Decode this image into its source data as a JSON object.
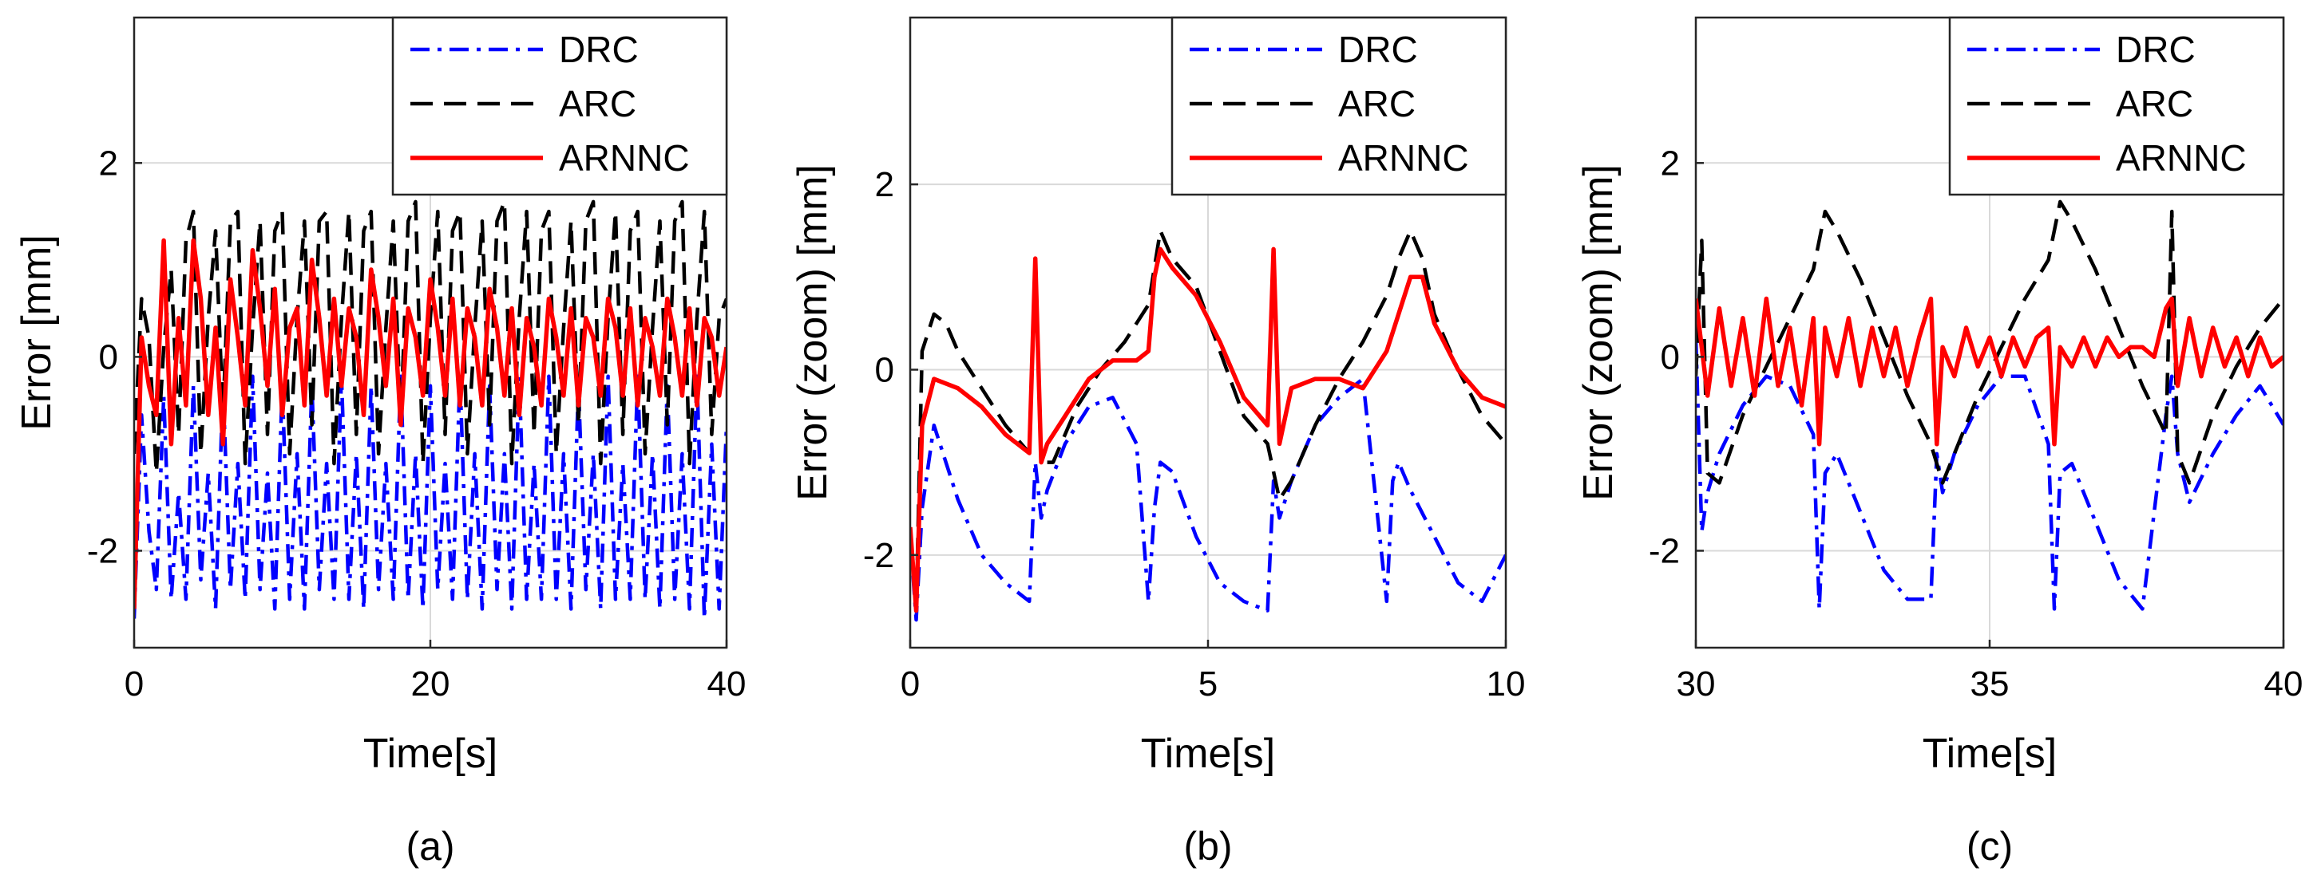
{
  "figure": {
    "series_styles": [
      {
        "name": "DRC",
        "color": "#0000FF",
        "dash": "dashdot"
      },
      {
        "name": "ARC",
        "color": "#000000",
        "dash": "dashed"
      },
      {
        "name": "ARNNC",
        "color": "#FF0000",
        "dash": "solid"
      }
    ]
  },
  "chart_data": [
    {
      "type": "line",
      "panel_label": "(a)",
      "xlabel": "Time[s]",
      "ylabel": "Error [mm]",
      "xlim": [
        0,
        40
      ],
      "ylim": [
        -3,
        3.5
      ],
      "xticks": [
        0,
        20,
        40
      ],
      "xtick_labels": [
        "0",
        "20",
        "40"
      ],
      "yticks": [
        -2,
        0,
        2
      ],
      "ytick_labels": [
        "-2",
        "0",
        "2"
      ],
      "grid": true,
      "legend": {
        "location": "top-right",
        "entries": [
          "DRC",
          "ARC",
          "ARNNC"
        ]
      },
      "series": [
        {
          "name": "DRC",
          "x": [
            0,
            0.5,
            1,
            1.5,
            2,
            2.5,
            3,
            3.5,
            4,
            4.5,
            5,
            5.5,
            6,
            6.5,
            7,
            7.5,
            8,
            8.5,
            9,
            9.5,
            10,
            10.5,
            11,
            11.5,
            12,
            12.5,
            13,
            13.5,
            14,
            14.5,
            15,
            15.5,
            16,
            16.5,
            17,
            17.5,
            18,
            18.5,
            19,
            19.5,
            20,
            20.5,
            21,
            21.5,
            22,
            22.5,
            23,
            23.5,
            24,
            24.5,
            25,
            25.5,
            26,
            26.5,
            27,
            27.5,
            28,
            28.5,
            29,
            29.5,
            30,
            30.5,
            31,
            31.5,
            32,
            32.5,
            33,
            33.5,
            34,
            34.5,
            35,
            35.5,
            36,
            36.5,
            37,
            37.5,
            38,
            38.5,
            39,
            39.5,
            40
          ],
          "y": [
            -2.7,
            -0.6,
            -1.8,
            -2.4,
            -0.4,
            -2.5,
            -1.4,
            -2.5,
            -0.3,
            -2.3,
            -1.2,
            -2.6,
            -0.3,
            -2.4,
            -1.1,
            -2.5,
            -0.2,
            -2.4,
            -1.2,
            -2.6,
            -0.3,
            -2.5,
            -1.0,
            -2.6,
            -0.3,
            -2.4,
            -1.1,
            -2.5,
            -0.2,
            -2.5,
            -1.0,
            -2.6,
            -0.3,
            -2.4,
            -1.1,
            -2.5,
            -0.2,
            -2.5,
            -1.0,
            -2.6,
            -0.3,
            -2.4,
            -1.1,
            -2.5,
            -0.2,
            -2.5,
            -1.0,
            -2.6,
            -0.3,
            -2.4,
            -1.0,
            -2.6,
            -0.2,
            -2.5,
            -1.1,
            -2.5,
            -0.2,
            -2.5,
            -1.0,
            -2.6,
            -0.3,
            -2.4,
            -1.0,
            -2.6,
            -0.2,
            -2.5,
            -1.1,
            -2.5,
            -0.2,
            -2.5,
            -1.0,
            -2.6,
            -0.3,
            -2.5,
            -1.0,
            -2.6,
            -0.2,
            -2.7,
            -0.9,
            -2.6,
            -0.7
          ]
        },
        {
          "name": "ARC",
          "x": [
            0,
            0.5,
            1,
            1.5,
            2,
            2.5,
            3,
            3.5,
            4,
            4.5,
            5,
            5.5,
            6,
            6.5,
            7,
            7.5,
            8,
            8.5,
            9,
            9.5,
            10,
            10.5,
            11,
            11.5,
            12,
            12.5,
            13,
            13.5,
            14,
            14.5,
            15,
            15.5,
            16,
            16.5,
            17,
            17.5,
            18,
            18.5,
            19,
            19.5,
            20,
            20.5,
            21,
            21.5,
            22,
            22.5,
            23,
            23.5,
            24,
            24.5,
            25,
            25.5,
            26,
            26.5,
            27,
            27.5,
            28,
            28.5,
            29,
            29.5,
            30,
            30.5,
            31,
            31.5,
            32,
            32.5,
            33,
            33.5,
            34,
            34.5,
            35,
            35.5,
            36,
            36.5,
            37,
            37.5,
            38,
            38.5,
            39,
            39.5,
            40
          ],
          "y": [
            -1.0,
            0.6,
            0.2,
            -1.2,
            0.1,
            0.9,
            -0.8,
            1.2,
            1.5,
            -1.0,
            0.4,
            1.3,
            -0.6,
            1.4,
            1.5,
            -1.1,
            0.3,
            1.4,
            -0.8,
            1.3,
            1.5,
            -1.0,
            0.4,
            1.4,
            -0.7,
            1.4,
            1.5,
            -1.1,
            0.4,
            1.5,
            -0.8,
            1.3,
            1.5,
            -1.0,
            0.3,
            1.4,
            -0.7,
            1.4,
            1.6,
            -1.1,
            0.4,
            1.5,
            -0.8,
            1.3,
            1.5,
            -1.0,
            0.3,
            1.4,
            -0.7,
            1.4,
            1.6,
            -1.1,
            0.4,
            1.5,
            -0.8,
            1.3,
            1.5,
            -1.0,
            0.3,
            1.4,
            -0.7,
            1.4,
            1.6,
            -1.1,
            0.4,
            1.5,
            -0.8,
            1.3,
            1.5,
            -1.0,
            0.3,
            1.4,
            -0.7,
            1.4,
            1.6,
            -1.1,
            0.4,
            1.5,
            -0.8,
            0.4,
            0.6
          ]
        },
        {
          "name": "ARNNC",
          "x": [
            0,
            0.5,
            1,
            1.5,
            2,
            2.5,
            3,
            3.5,
            4,
            4.5,
            5,
            5.5,
            6,
            6.5,
            7,
            7.5,
            8,
            8.5,
            9,
            9.5,
            10,
            10.5,
            11,
            11.5,
            12,
            12.5,
            13,
            13.5,
            14,
            14.5,
            15,
            15.5,
            16,
            16.5,
            17,
            17.5,
            18,
            18.5,
            19,
            19.5,
            20,
            20.5,
            21,
            21.5,
            22,
            22.5,
            23,
            23.5,
            24,
            24.5,
            25,
            25.5,
            26,
            26.5,
            27,
            27.5,
            28,
            28.5,
            29,
            29.5,
            30,
            30.5,
            31,
            31.5,
            32,
            32.5,
            33,
            33.5,
            34,
            34.5,
            35,
            35.5,
            36,
            36.5,
            37,
            37.5,
            38,
            38.5,
            39,
            39.5,
            40
          ],
          "y": [
            -2.6,
            0.2,
            -0.3,
            -0.6,
            1.2,
            -0.9,
            0.4,
            -0.5,
            1.2,
            0.6,
            -0.6,
            0.3,
            -0.9,
            0.8,
            0.2,
            -0.5,
            1.1,
            0.5,
            -0.3,
            0.7,
            -0.6,
            0.3,
            0.5,
            -0.5,
            1.0,
            0.4,
            -0.4,
            0.6,
            -0.3,
            0.5,
            0.2,
            -0.6,
            0.9,
            0.4,
            -0.3,
            0.6,
            -0.7,
            0.5,
            0.2,
            -0.4,
            0.8,
            0.3,
            -0.4,
            0.6,
            -0.5,
            0.5,
            0.2,
            -0.5,
            0.7,
            0.3,
            -0.4,
            0.5,
            -0.6,
            0.4,
            0.1,
            -0.5,
            0.6,
            0.2,
            -0.4,
            0.5,
            -0.5,
            0.4,
            0.2,
            -0.4,
            0.6,
            0.3,
            -0.4,
            0.5,
            -0.5,
            0.4,
            0.1,
            -0.4,
            0.6,
            0.2,
            -0.4,
            0.5,
            -0.5,
            0.4,
            0.2,
            -0.4,
            0.1
          ]
        }
      ]
    },
    {
      "type": "line",
      "panel_label": "(b)",
      "xlabel": "Time[s]",
      "ylabel": "Error (zoom) [mm]",
      "xlim": [
        0,
        10
      ],
      "ylim": [
        -3,
        3.8
      ],
      "xticks": [
        0,
        5,
        10
      ],
      "xtick_labels": [
        "0",
        "5",
        "10"
      ],
      "yticks": [
        -2,
        0,
        2
      ],
      "ytick_labels": [
        "-2",
        "0",
        "2"
      ],
      "grid": true,
      "legend": {
        "location": "top-right",
        "entries": [
          "DRC",
          "ARC",
          "ARNNC"
        ]
      },
      "series": [
        {
          "name": "DRC",
          "x": [
            0,
            0.1,
            0.2,
            0.4,
            0.8,
            1.2,
            1.6,
            2.0,
            2.1,
            2.2,
            2.3,
            2.6,
            3.0,
            3.4,
            3.8,
            4.0,
            4.1,
            4.2,
            4.4,
            4.8,
            5.2,
            5.6,
            6.0,
            6.1,
            6.2,
            6.4,
            6.8,
            7.2,
            7.6,
            8.0,
            8.1,
            8.2,
            8.4,
            8.8,
            9.2,
            9.6,
            10.0
          ],
          "y": [
            -1.8,
            -2.7,
            -1.5,
            -0.6,
            -1.4,
            -2.0,
            -2.3,
            -2.5,
            -1.0,
            -1.6,
            -1.3,
            -0.8,
            -0.4,
            -0.3,
            -0.8,
            -2.5,
            -1.5,
            -1.0,
            -1.1,
            -1.8,
            -2.3,
            -2.5,
            -2.6,
            -1.2,
            -1.6,
            -1.2,
            -0.6,
            -0.3,
            -0.1,
            -2.5,
            -1.2,
            -1.0,
            -1.3,
            -1.8,
            -2.3,
            -2.5,
            -2.0
          ]
        },
        {
          "name": "ARC",
          "x": [
            0,
            0.1,
            0.2,
            0.4,
            0.6,
            0.8,
            1.2,
            1.6,
            2.0,
            2.1,
            2.2,
            2.4,
            2.8,
            3.2,
            3.6,
            4.0,
            4.2,
            4.4,
            4.8,
            5.2,
            5.6,
            6.0,
            6.2,
            6.4,
            6.8,
            7.2,
            7.6,
            8.0,
            8.2,
            8.4,
            8.6,
            8.8,
            9.2,
            9.6,
            10.0
          ],
          "y": [
            -1.7,
            -2.6,
            0.2,
            0.6,
            0.5,
            0.2,
            -0.2,
            -0.6,
            -0.9,
            1.1,
            -1.0,
            -1.0,
            -0.4,
            0.0,
            0.3,
            0.7,
            1.5,
            1.2,
            0.9,
            0.2,
            -0.5,
            -0.8,
            -1.4,
            -1.2,
            -0.6,
            -0.1,
            0.3,
            0.8,
            1.2,
            1.5,
            1.2,
            0.6,
            0.0,
            -0.5,
            -0.8
          ]
        },
        {
          "name": "ARNNC",
          "x": [
            0,
            0.1,
            0.2,
            0.4,
            0.8,
            1.2,
            1.6,
            2.0,
            2.1,
            2.2,
            2.3,
            2.6,
            3.0,
            3.4,
            3.8,
            4.0,
            4.1,
            4.2,
            4.4,
            4.8,
            5.2,
            5.6,
            6.0,
            6.1,
            6.2,
            6.4,
            6.8,
            7.2,
            7.6,
            8.0,
            8.2,
            8.4,
            8.6,
            8.8,
            9.2,
            9.6,
            10.0
          ],
          "y": [
            -1.7,
            -2.6,
            -0.6,
            -0.1,
            -0.2,
            -0.4,
            -0.7,
            -0.9,
            1.2,
            -1.0,
            -0.8,
            -0.5,
            -0.1,
            0.1,
            0.1,
            0.2,
            1.0,
            1.3,
            1.1,
            0.8,
            0.3,
            -0.3,
            -0.6,
            1.3,
            -0.8,
            -0.2,
            -0.1,
            -0.1,
            -0.2,
            0.2,
            0.6,
            1.0,
            1.0,
            0.5,
            0.0,
            -0.3,
            -0.4
          ]
        }
      ]
    },
    {
      "type": "line",
      "panel_label": "(c)",
      "xlabel": "Time[s]",
      "ylabel": "Error (zoom) [mm]",
      "xlim": [
        30,
        40
      ],
      "ylim": [
        -3,
        3.5
      ],
      "xticks": [
        30,
        35,
        40
      ],
      "xtick_labels": [
        "30",
        "35",
        "40"
      ],
      "yticks": [
        -2,
        0,
        2
      ],
      "ytick_labels": [
        "-2",
        "0",
        "2"
      ],
      "grid": true,
      "legend": {
        "location": "top-right",
        "entries": [
          "DRC",
          "ARC",
          "ARNNC"
        ]
      },
      "series": [
        {
          "name": "DRC",
          "x": [
            30.0,
            30.1,
            30.2,
            30.4,
            30.8,
            31.2,
            31.6,
            32.0,
            32.1,
            32.2,
            32.4,
            32.8,
            33.2,
            33.6,
            34.0,
            34.1,
            34.2,
            34.4,
            34.8,
            35.2,
            35.6,
            36.0,
            36.1,
            36.2,
            36.4,
            36.8,
            37.2,
            37.6,
            38.0,
            38.1,
            38.2,
            38.4,
            38.8,
            39.2,
            39.6,
            40.0
          ],
          "y": [
            0.2,
            -1.8,
            -1.4,
            -1.0,
            -0.5,
            -0.2,
            -0.3,
            -0.8,
            -2.6,
            -1.2,
            -1.0,
            -1.6,
            -2.2,
            -2.5,
            -2.5,
            -1.0,
            -1.4,
            -1.0,
            -0.5,
            -0.2,
            -0.2,
            -0.9,
            -2.6,
            -1.2,
            -1.1,
            -1.7,
            -2.3,
            -2.6,
            -0.6,
            -0.2,
            -1.0,
            -1.5,
            -1.0,
            -0.6,
            -0.3,
            -0.7
          ]
        },
        {
          "name": "ARC",
          "x": [
            30.0,
            30.1,
            30.2,
            30.4,
            30.8,
            31.2,
            31.6,
            32.0,
            32.2,
            32.4,
            32.8,
            33.2,
            33.6,
            34.0,
            34.2,
            34.4,
            34.8,
            35.2,
            35.6,
            36.0,
            36.2,
            36.4,
            36.8,
            37.2,
            37.6,
            38.0,
            38.1,
            38.2,
            38.4,
            38.8,
            39.2,
            39.6,
            40.0
          ],
          "y": [
            -0.2,
            1.2,
            -1.2,
            -1.3,
            -0.6,
            -0.1,
            0.4,
            0.9,
            1.5,
            1.3,
            0.8,
            0.2,
            -0.4,
            -0.9,
            -1.3,
            -1.0,
            -0.4,
            0.1,
            0.6,
            1.0,
            1.6,
            1.4,
            0.9,
            0.3,
            -0.3,
            -0.8,
            1.5,
            -1.0,
            -1.3,
            -0.6,
            -0.1,
            0.3,
            0.6
          ]
        },
        {
          "name": "ARNNC",
          "x": [
            30.0,
            30.2,
            30.4,
            30.6,
            30.8,
            31.0,
            31.2,
            31.4,
            31.6,
            31.8,
            32.0,
            32.1,
            32.2,
            32.4,
            32.6,
            32.8,
            33.0,
            33.2,
            33.4,
            33.6,
            33.8,
            34.0,
            34.1,
            34.2,
            34.4,
            34.6,
            34.8,
            35.0,
            35.2,
            35.4,
            35.6,
            35.8,
            36.0,
            36.1,
            36.2,
            36.4,
            36.6,
            36.8,
            37.0,
            37.2,
            37.4,
            37.6,
            37.8,
            38.0,
            38.1,
            38.2,
            38.4,
            38.6,
            38.8,
            39.0,
            39.2,
            39.4,
            39.6,
            39.8,
            40.0
          ],
          "y": [
            0.6,
            -0.4,
            0.5,
            -0.3,
            0.4,
            -0.4,
            0.6,
            -0.3,
            0.3,
            -0.5,
            0.4,
            -0.9,
            0.3,
            -0.2,
            0.4,
            -0.3,
            0.3,
            -0.2,
            0.3,
            -0.3,
            0.2,
            0.6,
            -0.9,
            0.1,
            -0.2,
            0.3,
            -0.1,
            0.2,
            -0.2,
            0.2,
            -0.1,
            0.2,
            0.3,
            -0.9,
            0.1,
            -0.1,
            0.2,
            -0.1,
            0.2,
            0.0,
            0.1,
            0.1,
            0.0,
            0.5,
            0.6,
            -0.3,
            0.4,
            -0.2,
            0.3,
            -0.1,
            0.2,
            -0.2,
            0.2,
            -0.1,
            0.0
          ]
        }
      ]
    }
  ]
}
